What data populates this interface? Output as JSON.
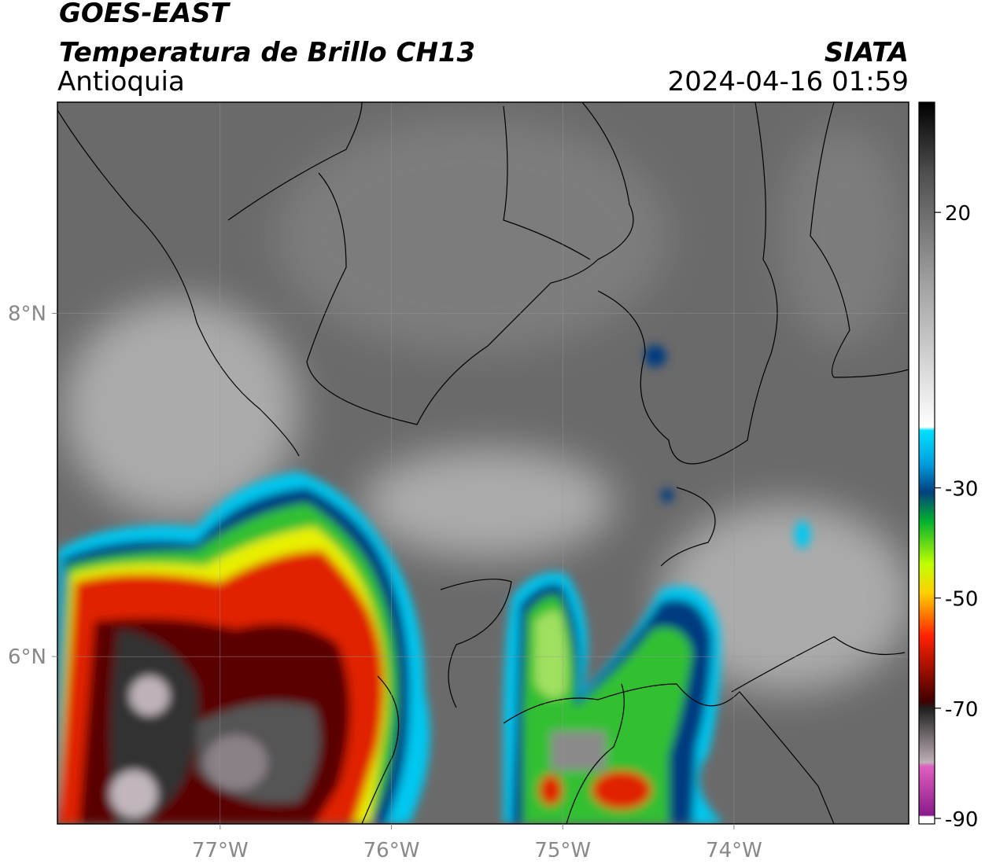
{
  "header": {
    "title": "GOES-EAST",
    "subtitle": "Temperatura de Brillo CH13",
    "region": "Antioquia",
    "source": "SIATA",
    "timestamp": "2024-04-16 01:59"
  },
  "map": {
    "xlim": [
      -77.95,
      -72.98
    ],
    "ylim": [
      5.025,
      9.23
    ],
    "xticks": [
      {
        "value": -77,
        "label": "77°W"
      },
      {
        "value": -76,
        "label": "76°W"
      },
      {
        "value": -75,
        "label": "75°W"
      },
      {
        "value": -74,
        "label": "74°W"
      }
    ],
    "yticks": [
      {
        "value": 8,
        "label": "8°N"
      },
      {
        "value": 6,
        "label": "6°N"
      }
    ],
    "grid": true
  },
  "colorbar": {
    "lim": [
      -91,
      40
    ],
    "ticks": [
      20,
      -30,
      -50,
      -70,
      -90
    ]
  }
}
